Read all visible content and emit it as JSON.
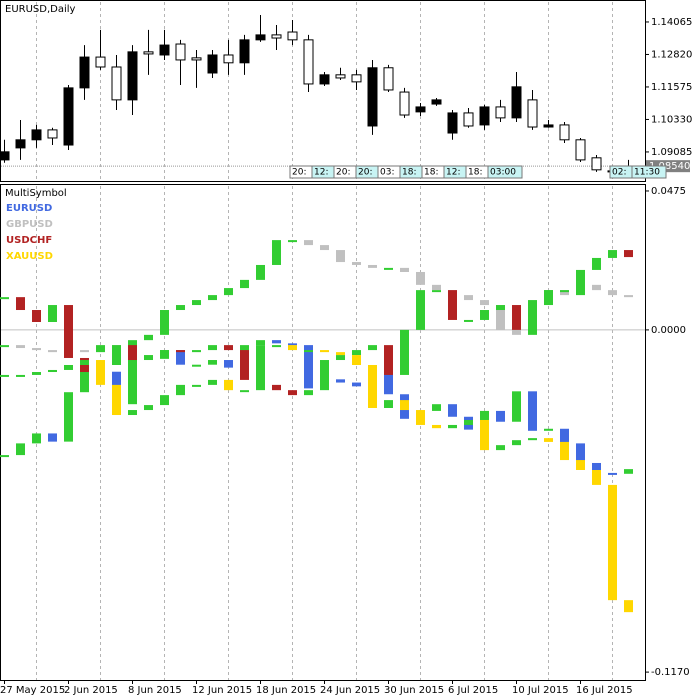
{
  "chart_data": [
    {
      "type": "candlestick",
      "title": "EURUSD,Daily",
      "open": [
        1.0878,
        1.0924,
        1.0955,
        1.0993,
        1.0935,
        1.1154,
        1.1272,
        1.1234,
        1.1108,
        1.1292,
        1.128,
        1.1322,
        1.1269,
        1.1211,
        1.128,
        1.125,
        1.1338,
        1.1357,
        1.1368,
        1.1338,
        1.1169,
        1.1204,
        1.1204,
        1.1008,
        1.1231,
        1.1138,
        1.1062,
        1.1092,
        1.0981,
        1.1058,
        1.1012,
        1.1081,
        1.1039,
        1.1108,
        1.1004,
        1.1012,
        1.0955,
        1.0886,
        1.0832,
        1.0848
      ],
      "high": [
        1.0955,
        1.1031,
        1.1012,
        1.1001,
        1.1165,
        1.1318,
        1.1376,
        1.128,
        1.1318,
        1.1376,
        1.1376,
        1.1338,
        1.1299,
        1.1299,
        1.1338,
        1.1357,
        1.1433,
        1.1395,
        1.1414,
        1.1357,
        1.1215,
        1.1231,
        1.1223,
        1.1261,
        1.1242,
        1.1154,
        1.1096,
        1.1115,
        1.1069,
        1.1077,
        1.1089,
        1.1108,
        1.1215,
        1.1146,
        1.1031,
        1.1023,
        1.0962,
        1.0897,
        1.0848,
        1.0878
      ],
      "low": [
        1.0867,
        1.0878,
        1.0924,
        1.0935,
        1.0916,
        1.1108,
        1.1223,
        1.1069,
        1.105,
        1.1204,
        1.1261,
        1.1165,
        1.1154,
        1.1192,
        1.1204,
        1.1204,
        1.133,
        1.1299,
        1.1318,
        1.1138,
        1.1161,
        1.1184,
        1.1146,
        1.0974,
        1.1138,
        1.1039,
        1.1046,
        1.1085,
        1.0955,
        1.1001,
        1.0993,
        1.1023,
        1.1023,
        1.0993,
        1.1001,
        1.0943,
        1.087,
        1.0832,
        1.0825,
        1.084
      ],
      "close": [
        1.0909,
        1.0955,
        1.0993,
        1.0962,
        1.1154,
        1.1272,
        1.1234,
        1.1108,
        1.1292,
        1.1284,
        1.1318,
        1.1261,
        1.1261,
        1.128,
        1.125,
        1.1338,
        1.1357,
        1.1345,
        1.1338,
        1.1169,
        1.1204,
        1.1192,
        1.1177,
        1.1231,
        1.1146,
        1.105,
        1.1081,
        1.1108,
        1.1058,
        1.1008,
        1.1081,
        1.1039,
        1.1158,
        1.1004,
        1.1012,
        1.0955,
        1.0878,
        1.084,
        1.0836,
        1.0854
      ],
      "bull_color": "#000000",
      "bear_color": "#ffffff",
      "ylim": [
        1.0801,
        1.1483
      ],
      "yticks": [
        1.14065,
        {
          "value": 1.1282,
          "label": "1.12820"
        },
        1.11575,
        {
          "value": 1.1033,
          "label": "1.10330"
        },
        1.09085
      ],
      "last_price": {
        "value": 1.0854,
        "label": "1.08540"
      },
      "time_labels": [
        "20:",
        "12:",
        "20:",
        "20:",
        "03:",
        "18:",
        "18:",
        "12:",
        "18:",
        "03:00"
      ],
      "time_labels_right": [
        "02:",
        "11:30"
      ],
      "grid": true
    },
    {
      "type": "multi_candle",
      "title": "MultiSymbol",
      "categories": [
        "27 May 2015",
        null,
        null,
        null,
        "2 Jun 2015",
        null,
        null,
        null,
        "8 Jun 2015",
        null,
        null,
        null,
        "12 Jun 2015",
        null,
        null,
        null,
        "18 Jun 2015",
        null,
        null,
        null,
        "24 Jun 2015",
        null,
        null,
        null,
        "30 Jun 2015",
        null,
        null,
        null,
        "6 Jul 2015",
        null,
        null,
        null,
        "10 Jul 2015",
        null,
        null,
        null,
        "16 Jul 2015",
        null,
        null,
        null
      ],
      "up_color": "#32cd32",
      "series": [
        {
          "name": "EURUSD",
          "color": "#4169e1",
          "values": [
            -0.0428,
            -0.0388,
            -0.0354,
            -0.0382,
            -0.0213,
            -0.011,
            -0.0143,
            -0.0254,
            -0.0092,
            -0.0099,
            -0.0069,
            -0.0119,
            -0.0119,
            -0.0103,
            -0.0129,
            -0.0052,
            -0.0035,
            -0.0046,
            -0.0052,
            -0.02,
            -0.0169,
            -0.018,
            -0.0193,
            -0.0146,
            -0.022,
            -0.0304,
            -0.0277,
            -0.0254,
            -0.0297,
            -0.0341,
            -0.0277,
            -0.0314,
            -0.021,
            -0.0345,
            -0.0338,
            -0.0388,
            -0.0455,
            -0.0489,
            -0.0492,
            -0.0476
          ]
        },
        {
          "name": "GBPUSD",
          "color": "#c0c0c0",
          "values": [
            -0.0052,
            -0.0062,
            -0.0069,
            -0.0076,
            -0.0069,
            -0.0076,
            -0.0052,
            -0.0069,
            -0.0035,
            -0.0017,
            0.0068,
            0.0085,
            0.0102,
            0.0119,
            0.0143,
            0.0171,
            0.0222,
            0.0307,
            0.0307,
            0.029,
            0.0273,
            0.0232,
            0.0222,
            0.0212,
            0.0212,
            0.0198,
            0.0154,
            0.0136,
            0.0119,
            0.0102,
            0.0085,
            0.0,
            -0.0017,
            0.0102,
            0.0136,
            0.0119,
            0.0154,
            0.0136,
            0.0119,
            0.0112
          ]
        },
        {
          "name": "USDCHF",
          "color": "#b22222",
          "values": [
            0.0112,
            0.0068,
            0.0027,
            0.0085,
            -0.0096,
            -0.0144,
            -0.012,
            -0.0052,
            -0.0103,
            -0.0086,
            -0.0069,
            -0.0076,
            -0.0069,
            -0.0052,
            -0.0069,
            -0.0171,
            -0.0188,
            -0.0206,
            -0.0223,
            -0.0206,
            -0.0103,
            -0.0086,
            -0.0069,
            -0.0052,
            -0.0154,
            0.0,
            0.0136,
            0.0136,
            0.0034,
            0.0034,
            0.0068,
            0.0085,
            0.0,
            0.0085,
            0.0136,
            0.0136,
            0.0205,
            0.0246,
            0.0273,
            0.0249
          ]
        },
        {
          "name": "XAUUSD",
          "color": "#ffd700",
          "values": [
            -0.0154,
            -0.0154,
            -0.0144,
            -0.0137,
            -0.012,
            -0.0103,
            -0.0188,
            -0.0291,
            -0.0274,
            -0.0257,
            -0.0223,
            -0.0188,
            -0.0188,
            -0.0171,
            -0.0206,
            -0.0206,
            -0.0052,
            -0.0052,
            -0.0069,
            -0.0069,
            -0.0076,
            -0.0086,
            -0.012,
            -0.0267,
            -0.024,
            -0.0274,
            -0.0325,
            -0.0336,
            -0.0325,
            -0.0308,
            -0.0411,
            -0.0394,
            -0.0377,
            -0.037,
            -0.0383,
            -0.0445,
            -0.0479,
            -0.053,
            -0.0924,
            -0.0965
          ]
        }
      ],
      "ylim": [
        -0.1197,
        0.0492
      ],
      "yticks": [
        0.0475,
        {
          "value": 0,
          "label": "0.0000"
        },
        {
          "value": -0.117,
          "label": "-0.1170"
        }
      ],
      "grid": true
    }
  ]
}
